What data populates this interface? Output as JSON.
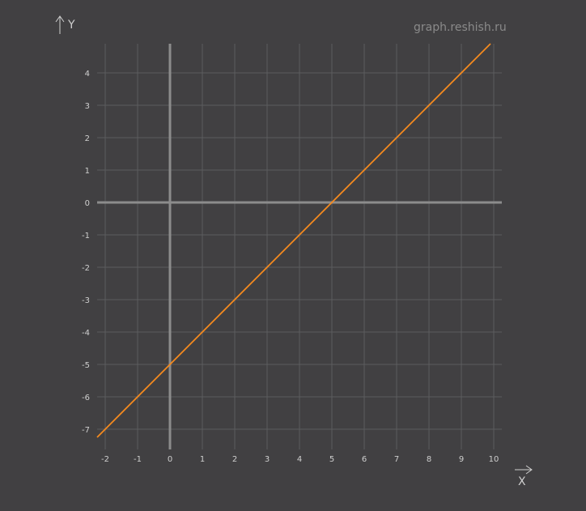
{
  "watermark": "graph.reshish.ru",
  "chart_data": {
    "type": "line",
    "title": "",
    "xlabel": "X",
    "ylabel": "Y",
    "xlim": [
      -2.25,
      10.25
    ],
    "ylim": [
      -7.5,
      4.9
    ],
    "grid": true,
    "x_ticks": [
      -2,
      -1,
      0,
      1,
      2,
      3,
      4,
      5,
      6,
      7,
      8,
      9,
      10
    ],
    "y_ticks": [
      4,
      3,
      2,
      1,
      0,
      -1,
      -2,
      -3,
      -4,
      -5,
      -6,
      -7
    ],
    "series": [
      {
        "x": [
          -2.25,
          9.9
        ],
        "y": [
          -7.25,
          4.9
        ],
        "color": "#f58a1f"
      }
    ]
  },
  "colors": {
    "background": "#414042",
    "grid": "#5c5c5e",
    "axis": "#8c8c8c",
    "line": "#f58a1f"
  }
}
